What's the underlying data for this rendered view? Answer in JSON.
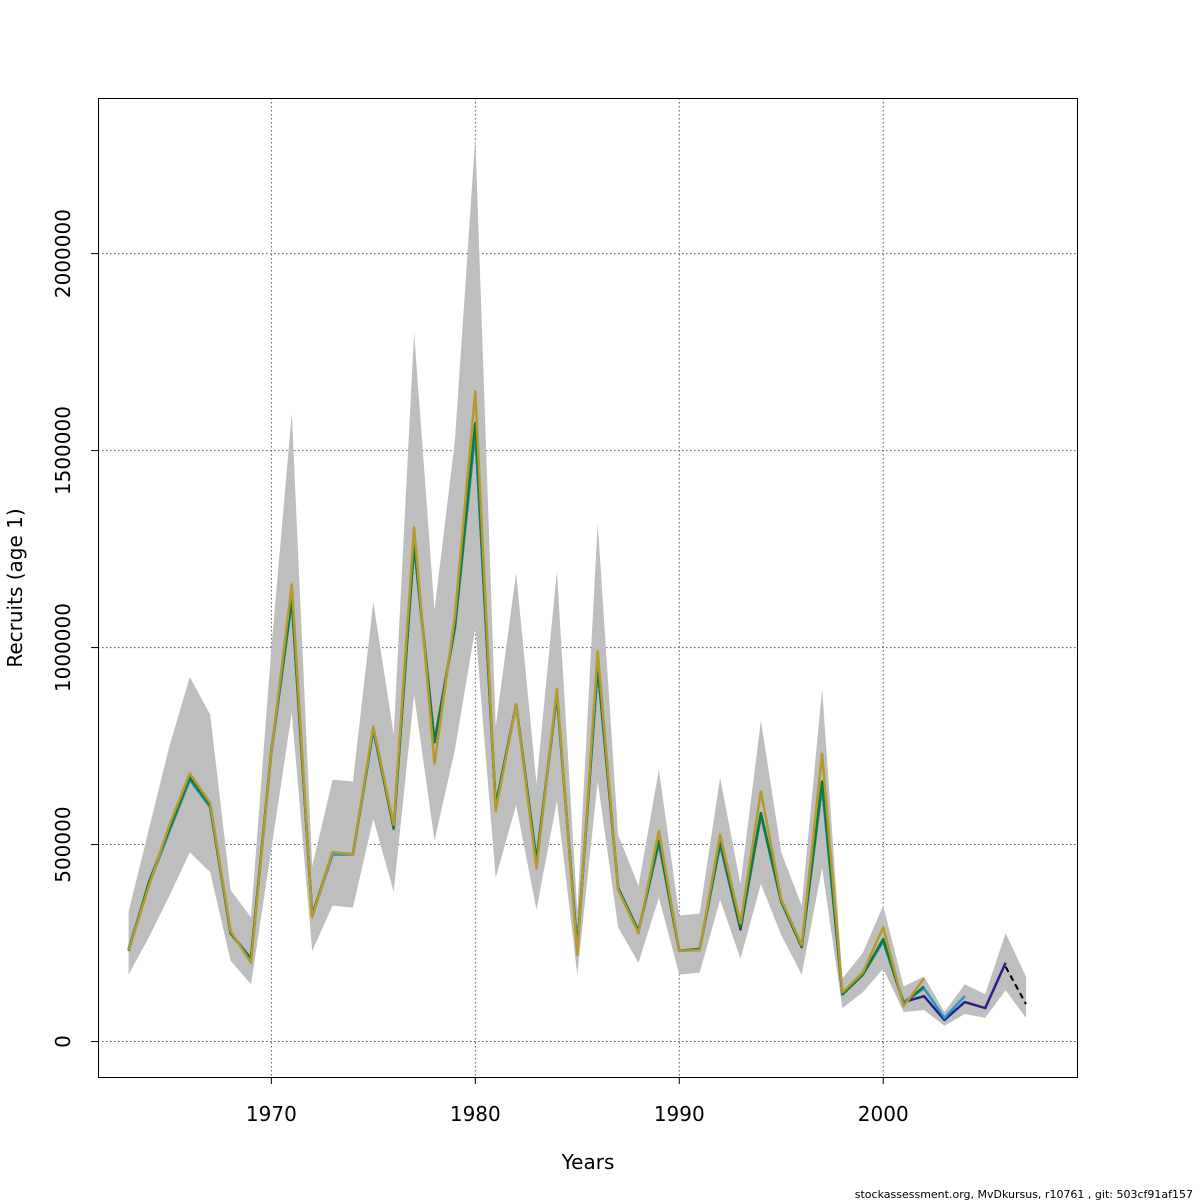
{
  "chart_data": {
    "type": "line",
    "xlabel": "Years",
    "ylabel": "Recruits (age 1)",
    "xlim": [
      1961.5,
      2009.5
    ],
    "ylim": [
      -90000,
      2395000
    ],
    "xticks": [
      1970,
      1980,
      1990,
      2000
    ],
    "yticks": [
      0,
      500000,
      1000000,
      1500000,
      2000000
    ],
    "ytick_labels": [
      "0",
      "500000",
      "1000000",
      "1500000",
      "2000000"
    ],
    "grid": true,
    "confidence_band": {
      "color": "#bebebe",
      "x": [
        1963,
        1964,
        1965,
        1966,
        1967,
        1968,
        1969,
        1970,
        1971,
        1972,
        1973,
        1974,
        1975,
        1976,
        1977,
        1978,
        1979,
        1980,
        1981,
        1982,
        1983,
        1984,
        1985,
        1986,
        1987,
        1988,
        1989,
        1990,
        1991,
        1992,
        1993,
        1994,
        1995,
        1996,
        1997,
        1998,
        1999,
        2000,
        2001,
        2002,
        2003,
        2004,
        2005,
        2006,
        2007
      ],
      "upper": [
        330000,
        540000,
        750000,
        925000,
        830000,
        385000,
        315000,
        1000000,
        1595000,
        445000,
        665000,
        660000,
        1115000,
        780000,
        1800000,
        1095000,
        1525000,
        2295000,
        800000,
        1190000,
        655000,
        1195000,
        330000,
        1315000,
        525000,
        395000,
        690000,
        320000,
        325000,
        670000,
        400000,
        815000,
        480000,
        345000,
        895000,
        160000,
        225000,
        345000,
        140000,
        165000,
        75000,
        145000,
        120000,
        275000,
        165000
      ],
      "lower": [
        170000,
        265000,
        370000,
        480000,
        430000,
        205000,
        145000,
        490000,
        835000,
        230000,
        345000,
        340000,
        565000,
        380000,
        880000,
        510000,
        740000,
        1050000,
        415000,
        600000,
        335000,
        610000,
        170000,
        660000,
        290000,
        200000,
        365000,
        170000,
        175000,
        360000,
        210000,
        400000,
        270000,
        170000,
        440000,
        85000,
        125000,
        185000,
        75000,
        80000,
        40000,
        70000,
        60000,
        130000,
        60000
      ]
    },
    "x": [
      1963,
      1964,
      1965,
      1966,
      1967,
      1968,
      1969,
      1970,
      1971,
      1972,
      1973,
      1974,
      1975,
      1976,
      1977,
      1978,
      1979,
      1980,
      1981,
      1982,
      1983,
      1984,
      1985,
      1986,
      1987,
      1988,
      1989,
      1990,
      1991,
      1992,
      1993,
      1994,
      1995,
      1996,
      1997,
      1998,
      1999,
      2000,
      2001,
      2002,
      2003,
      2004,
      2005,
      2006,
      2007
    ],
    "series": [
      {
        "color": "#000000",
        "dashed": true,
        "values": [
          null,
          null,
          null,
          null,
          null,
          null,
          null,
          null,
          null,
          null,
          null,
          null,
          null,
          null,
          null,
          null,
          null,
          null,
          null,
          null,
          null,
          null,
          null,
          null,
          null,
          null,
          null,
          null,
          null,
          null,
          null,
          null,
          null,
          null,
          null,
          null,
          null,
          null,
          null,
          null,
          null,
          null,
          null,
          190000,
          95000
        ]
      },
      {
        "color": "#2b1f8c",
        "values": [
          235000,
          400000,
          535000,
          665000,
          595000,
          275000,
          210000,
          735000,
          1120000,
          320000,
          475000,
          475000,
          790000,
          545000,
          1260000,
          760000,
          1050000,
          1550000,
          595000,
          855000,
          455000,
          880000,
          235000,
          950000,
          390000,
          280000,
          505000,
          230000,
          235000,
          500000,
          285000,
          575000,
          355000,
          240000,
          650000,
          120000,
          170000,
          255000,
          100000,
          115000,
          55000,
          100000,
          85000,
          200000,
          null
        ]
      },
      {
        "color": "#1f9bc4",
        "values": [
          235000,
          400000,
          535000,
          665000,
          595000,
          275000,
          210000,
          735000,
          1120000,
          320000,
          475000,
          475000,
          790000,
          545000,
          1260000,
          760000,
          1050000,
          1550000,
          595000,
          855000,
          455000,
          880000,
          235000,
          950000,
          390000,
          280000,
          505000,
          230000,
          235000,
          500000,
          290000,
          575000,
          355000,
          240000,
          650000,
          120000,
          170000,
          255000,
          100000,
          135000,
          60000,
          115000,
          null,
          null,
          null
        ]
      },
      {
        "color": "#0f7a3a",
        "values": [
          230000,
          405000,
          540000,
          670000,
          600000,
          275000,
          210000,
          740000,
          1125000,
          320000,
          480000,
          475000,
          795000,
          540000,
          1265000,
          760000,
          1055000,
          1570000,
          600000,
          855000,
          460000,
          885000,
          235000,
          955000,
          390000,
          280000,
          510000,
          230000,
          235000,
          505000,
          290000,
          580000,
          355000,
          240000,
          660000,
          120000,
          170000,
          260000,
          95000,
          140000,
          null,
          null,
          null,
          null,
          null
        ]
      },
      {
        "color": "#b59a2e",
        "values": [
          232000,
          395000,
          550000,
          680000,
          605000,
          280000,
          200000,
          735000,
          1160000,
          315000,
          480000,
          475000,
          800000,
          550000,
          1305000,
          705000,
          1080000,
          1650000,
          585000,
          855000,
          440000,
          895000,
          220000,
          990000,
          385000,
          275000,
          535000,
          230000,
          232000,
          525000,
          300000,
          635000,
          360000,
          245000,
          730000,
          125000,
          175000,
          290000,
          90000,
          160000,
          null,
          null,
          null,
          null,
          null
        ]
      }
    ]
  },
  "footer": {
    "text": "stockassessment.org, MvDkursus, r10761 , git: 503cf91af157"
  }
}
